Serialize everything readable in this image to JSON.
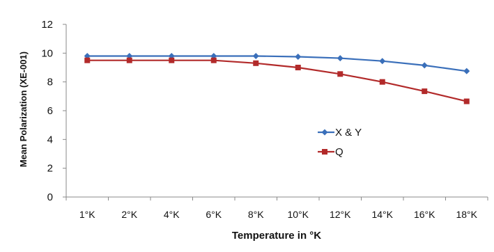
{
  "chart_data": {
    "type": "line",
    "title": "",
    "xlabel": "Temperature in °K",
    "ylabel": "Mean Polarization (XE-001)",
    "categories": [
      "1°K",
      "2°K",
      "4°K",
      "6°K",
      "8°K",
      "10°K",
      "12°K",
      "14°K",
      "16°K",
      "18°K"
    ],
    "ylim": [
      0,
      12
    ],
    "yticks": [
      0,
      2,
      4,
      6,
      8,
      10,
      12
    ],
    "grid": false,
    "legend_position": "right",
    "series": [
      {
        "name": "X & Y",
        "color": "#3a6fba",
        "marker": "diamond",
        "values": [
          9.8,
          9.8,
          9.8,
          9.8,
          9.8,
          9.75,
          9.65,
          9.45,
          9.15,
          8.75
        ]
      },
      {
        "name": "Q",
        "color": "#b22a2a",
        "marker": "square",
        "values": [
          9.5,
          9.5,
          9.5,
          9.5,
          9.3,
          9.0,
          8.55,
          8.0,
          7.35,
          6.65
        ]
      }
    ]
  }
}
